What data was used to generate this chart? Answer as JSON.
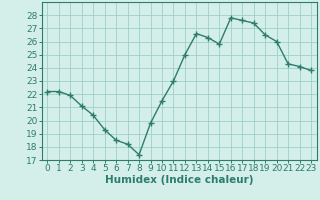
{
  "x": [
    0,
    1,
    2,
    3,
    4,
    5,
    6,
    7,
    8,
    9,
    10,
    11,
    12,
    13,
    14,
    15,
    16,
    17,
    18,
    19,
    20,
    21,
    22,
    23
  ],
  "y": [
    22.2,
    22.2,
    21.9,
    21.1,
    20.4,
    19.3,
    18.5,
    18.2,
    17.4,
    19.8,
    21.5,
    23.0,
    25.0,
    26.6,
    26.3,
    25.8,
    27.8,
    27.6,
    27.4,
    26.5,
    26.0,
    24.3,
    24.1,
    23.8
  ],
  "line_color": "#2d7d6d",
  "marker": "+",
  "marker_size": 4,
  "marker_lw": 1.0,
  "bg_color": "#b8ddd8",
  "grid_color": "#9fcfca",
  "plot_bg": "#d4eeea",
  "xlabel": "Humidex (Indice chaleur)",
  "ylim": [
    17,
    29
  ],
  "yticks": [
    17,
    18,
    19,
    20,
    21,
    22,
    23,
    24,
    25,
    26,
    27,
    28
  ],
  "xticks": [
    0,
    1,
    2,
    3,
    4,
    5,
    6,
    7,
    8,
    9,
    10,
    11,
    12,
    13,
    14,
    15,
    16,
    17,
    18,
    19,
    20,
    21,
    22,
    23
  ],
  "xlim": [
    -0.5,
    23.5
  ],
  "tick_color": "#2d7d6d",
  "label_fontsize": 6.5,
  "xlabel_fontsize": 7.5,
  "linewidth": 1.0
}
